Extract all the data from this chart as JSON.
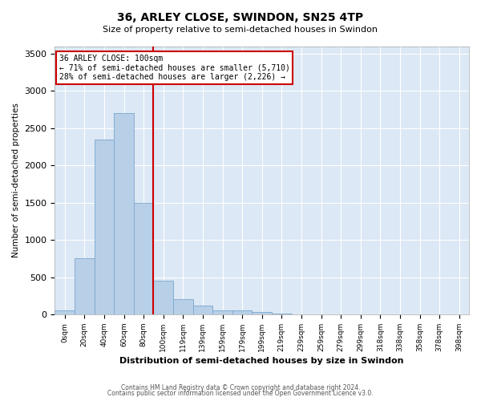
{
  "title": "36, ARLEY CLOSE, SWINDON, SN25 4TP",
  "subtitle": "Size of property relative to semi-detached houses in Swindon",
  "xlabel": "Distribution of semi-detached houses by size in Swindon",
  "ylabel": "Number of semi-detached properties",
  "annotation_title": "36 ARLEY CLOSE: 100sqm",
  "annotation_line1": "← 71% of semi-detached houses are smaller (5,710)",
  "annotation_line2": "28% of semi-detached houses are larger (2,226) →",
  "footnote1": "Contains HM Land Registry data © Crown copyright and database right 2024.",
  "footnote2": "Contains public sector information licensed under the Open Government Licence v3.0.",
  "bar_color": "#b8cfe8",
  "bar_edge_color": "#7ba7cc",
  "property_line_color": "#cc0000",
  "annotation_box_edge_color": "#cc0000",
  "background_color": "#dce8f5",
  "grid_color": "#ffffff",
  "categories": [
    "0sqm",
    "20sqm",
    "40sqm",
    "60sqm",
    "80sqm",
    "100sqm",
    "119sqm",
    "139sqm",
    "159sqm",
    "179sqm",
    "199sqm",
    "219sqm",
    "239sqm",
    "259sqm",
    "279sqm",
    "299sqm",
    "318sqm",
    "338sqm",
    "358sqm",
    "378sqm",
    "398sqm"
  ],
  "values": [
    50,
    750,
    2350,
    2700,
    1500,
    450,
    200,
    120,
    50,
    50,
    30,
    10,
    0,
    0,
    0,
    0,
    0,
    0,
    0,
    0,
    0
  ],
  "ylim": [
    0,
    3600
  ],
  "yticks": [
    0,
    500,
    1000,
    1500,
    2000,
    2500,
    3000,
    3500
  ],
  "property_bar_index": 4,
  "figwidth": 6.0,
  "figheight": 5.0,
  "dpi": 100
}
